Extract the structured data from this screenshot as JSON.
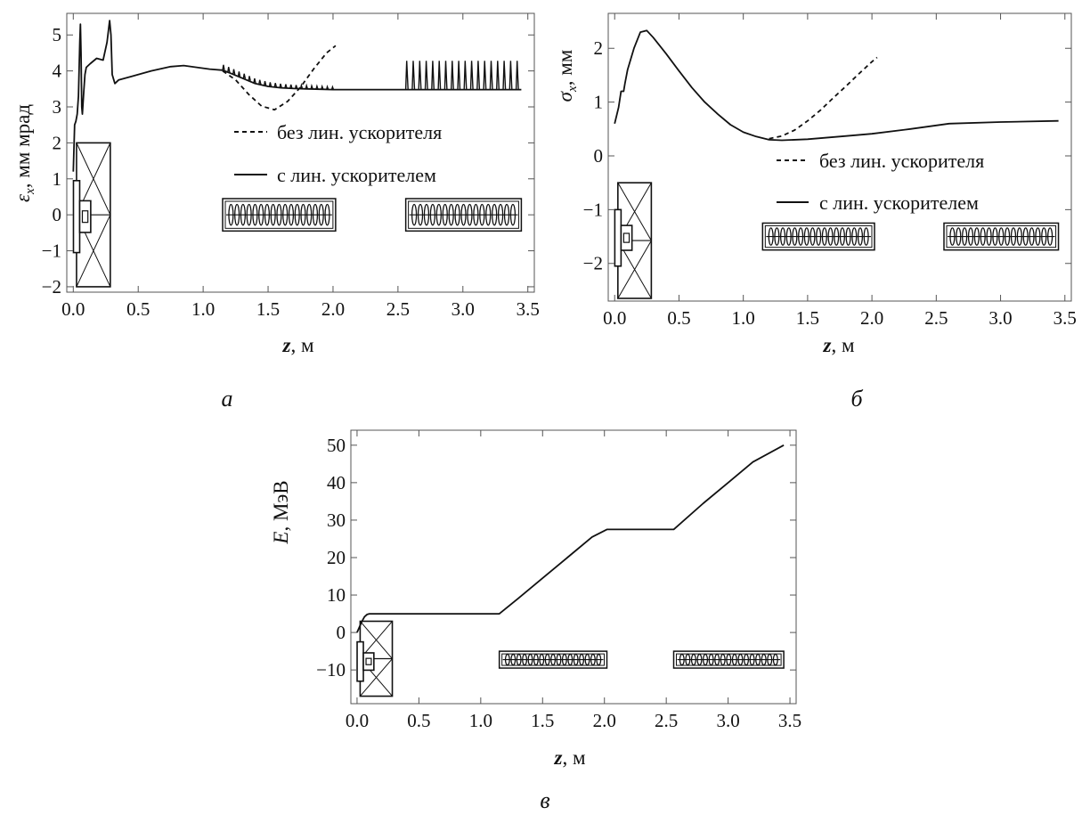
{
  "figure": {
    "panel_letters": [
      "а",
      "б",
      "в"
    ]
  },
  "chart_data": [
    {
      "id": "a",
      "type": "line",
      "title": "",
      "panel_letter": "а",
      "xlabel": "z, м",
      "ylabel": "εx, мм мрад",
      "xlim": [
        -0.05,
        3.55
      ],
      "ylim": [
        -2.15,
        5.6
      ],
      "xticks": [
        0.0,
        0.5,
        1.0,
        1.5,
        2.0,
        2.5,
        3.0,
        3.5
      ],
      "xtick_labels": [
        "0.0",
        "0.5",
        "1.0",
        "1.5",
        "2.0",
        "2.5",
        "3.0",
        "3.5"
      ],
      "yticks": [
        -2,
        -1,
        0,
        1,
        2,
        3,
        4,
        5
      ],
      "ytick_labels": [
        "−2",
        "−1",
        "0",
        "1",
        "2",
        "3",
        "4",
        "5"
      ],
      "grid": false,
      "legend_position": "right",
      "series": [
        {
          "name": "с лин. ускорителем",
          "style": "solid",
          "color": "#111111",
          "x": [
            0.0,
            0.01,
            0.02,
            0.03,
            0.04,
            0.05,
            0.055,
            0.06,
            0.065,
            0.07,
            0.08,
            0.09,
            0.1,
            0.13,
            0.18,
            0.23,
            0.26,
            0.28,
            0.29,
            0.3,
            0.32,
            0.35,
            0.45,
            0.6,
            0.75,
            0.85,
            0.95,
            1.05,
            1.15,
            1.2,
            1.3,
            1.4,
            1.5,
            1.6,
            1.7,
            1.8,
            1.9,
            2.0,
            2.3,
            2.55,
            3.45
          ],
          "y": [
            1.2,
            2.5,
            2.6,
            2.8,
            3.3,
            4.8,
            5.3,
            4.5,
            3.0,
            2.8,
            3.4,
            3.9,
            4.1,
            4.2,
            4.35,
            4.3,
            4.8,
            5.4,
            5.0,
            3.9,
            3.65,
            3.75,
            3.85,
            4.0,
            4.12,
            4.15,
            4.1,
            4.05,
            4.02,
            3.95,
            3.8,
            3.65,
            3.57,
            3.53,
            3.51,
            3.5,
            3.49,
            3.48,
            3.48,
            3.48,
            3.48
          ]
        },
        {
          "name": "без лин. ускорителя",
          "style": "dashed",
          "color": "#111111",
          "x": [
            1.15,
            1.25,
            1.35,
            1.45,
            1.55,
            1.65,
            1.75,
            1.85,
            1.95,
            2.02
          ],
          "y": [
            4.0,
            3.75,
            3.35,
            3.02,
            2.92,
            3.15,
            3.55,
            4.05,
            4.5,
            4.7
          ]
        }
      ],
      "oscillations": [
        {
          "x_start": 1.15,
          "x_end": 2.02,
          "period": 0.04,
          "amp_start": 0.15,
          "amp_end": 0.07
        },
        {
          "x_start": 2.56,
          "x_end": 3.45,
          "period": 0.05,
          "amp_start": 0.8,
          "amp_end": 0.8
        }
      ],
      "elements": {
        "gun_y": [
          -1.05,
          0.95
        ],
        "solenoid_y": [
          -2.0,
          2.0
        ],
        "linac_y": [
          -0.45,
          0.45
        ],
        "linac_sections": [
          [
            1.15,
            2.02
          ],
          [
            2.56,
            3.45
          ]
        ]
      }
    },
    {
      "id": "b",
      "type": "line",
      "title": "",
      "panel_letter": "б",
      "xlabel": "z, м",
      "ylabel": "σx, мм",
      "xlim": [
        -0.05,
        3.55
      ],
      "ylim": [
        -2.7,
        2.65
      ],
      "xticks": [
        0.0,
        0.5,
        1.0,
        1.5,
        2.0,
        2.5,
        3.0,
        3.5
      ],
      "xtick_labels": [
        "0.0",
        "0.5",
        "1.0",
        "1.5",
        "2.0",
        "2.5",
        "3.0",
        "3.5"
      ],
      "yticks": [
        -2,
        -1,
        0,
        1,
        2
      ],
      "ytick_labels": [
        "−2",
        "−1",
        "0",
        "1",
        "2"
      ],
      "grid": false,
      "legend_position": "right",
      "series": [
        {
          "name": "с лин. ускорителем",
          "style": "solid",
          "color": "#111111",
          "x": [
            0.0,
            0.03,
            0.05,
            0.07,
            0.08,
            0.1,
            0.15,
            0.2,
            0.25,
            0.3,
            0.4,
            0.5,
            0.6,
            0.7,
            0.8,
            0.9,
            1.0,
            1.1,
            1.2,
            1.3,
            1.5,
            1.8,
            2.0,
            2.3,
            2.6,
            3.0,
            3.45
          ],
          "y": [
            0.6,
            0.9,
            1.2,
            1.2,
            1.35,
            1.6,
            2.0,
            2.3,
            2.33,
            2.2,
            1.9,
            1.58,
            1.27,
            1.0,
            0.78,
            0.58,
            0.44,
            0.36,
            0.3,
            0.29,
            0.31,
            0.37,
            0.41,
            0.5,
            0.6,
            0.63,
            0.65
          ]
        },
        {
          "name": "без лин. ускорителя",
          "style": "dashed",
          "color": "#111111",
          "x": [
            1.2,
            1.3,
            1.4,
            1.5,
            1.6,
            1.7,
            1.8,
            1.9,
            2.0,
            2.04
          ],
          "y": [
            0.32,
            0.37,
            0.48,
            0.65,
            0.85,
            1.08,
            1.3,
            1.53,
            1.75,
            1.83
          ]
        }
      ],
      "oscillations": [],
      "elements": {
        "gun_y": [
          -2.05,
          -1.0
        ],
        "solenoid_y": [
          -2.65,
          -0.5
        ],
        "linac_y": [
          -1.75,
          -1.25
        ],
        "linac_sections": [
          [
            1.15,
            2.02
          ],
          [
            2.56,
            3.45
          ]
        ]
      }
    },
    {
      "id": "c",
      "type": "line",
      "title": "",
      "panel_letter": "в",
      "xlabel": "z, м",
      "ylabel": "E, МэВ",
      "xlim": [
        -0.05,
        3.55
      ],
      "ylim": [
        -19,
        54
      ],
      "xticks": [
        0.0,
        0.5,
        1.0,
        1.5,
        2.0,
        2.5,
        3.0,
        3.5
      ],
      "xtick_labels": [
        "0.0",
        "0.5",
        "1.0",
        "1.5",
        "2.0",
        "2.5",
        "3.0",
        "3.5"
      ],
      "yticks": [
        -10,
        0,
        10,
        20,
        30,
        40,
        50
      ],
      "ytick_labels": [
        "−10",
        "0",
        "10",
        "20",
        "30",
        "40",
        "50"
      ],
      "grid": false,
      "legend_position": "none",
      "series": [
        {
          "name": "",
          "style": "solid",
          "color": "#111111",
          "x": [
            0.0,
            0.02,
            0.04,
            0.06,
            0.08,
            0.1,
            0.3,
            0.6,
            1.0,
            1.15,
            1.3,
            1.5,
            1.7,
            1.9,
            2.02,
            2.56,
            2.8,
            3.0,
            3.2,
            3.45
          ],
          "y": [
            0.0,
            1.5,
            3.0,
            4.2,
            4.8,
            5.0,
            5.0,
            5.0,
            5.0,
            5.0,
            9.0,
            14.5,
            20.0,
            25.5,
            27.5,
            27.5,
            34.5,
            40.0,
            45.5,
            50.0
          ]
        }
      ],
      "oscillations": [],
      "elements": {
        "gun_y": [
          -13.0,
          -2.5
        ],
        "solenoid_y": [
          -17.0,
          3.0
        ],
        "linac_y": [
          -9.5,
          -5.0
        ],
        "linac_sections": [
          [
            1.15,
            2.02
          ],
          [
            2.56,
            3.45
          ]
        ]
      }
    }
  ]
}
